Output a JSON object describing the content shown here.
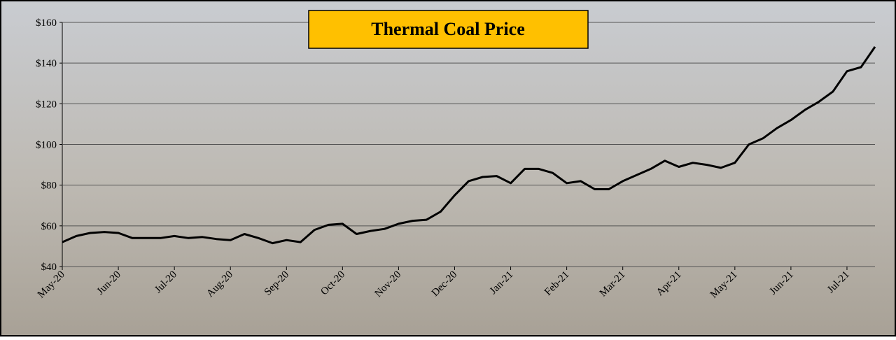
{
  "chart_data": {
    "type": "line",
    "title": "Thermal Coal Price",
    "categories": [
      "May-20",
      null,
      null,
      null,
      "Jun-20",
      null,
      null,
      null,
      "Jul-20",
      null,
      null,
      null,
      "Aug-20",
      null,
      null,
      null,
      "Sep-20",
      null,
      null,
      null,
      "Oct-20",
      null,
      null,
      null,
      "Nov-20",
      null,
      null,
      null,
      "Dec-20",
      null,
      null,
      null,
      "Jan-21",
      null,
      null,
      null,
      "Feb-21",
      null,
      null,
      null,
      "Mar-21",
      null,
      null,
      null,
      "Apr-21",
      null,
      null,
      null,
      "May-21",
      null,
      null,
      null,
      "Jun-21",
      null,
      null,
      null,
      "Jul-21",
      null,
      null
    ],
    "series": [
      {
        "name": "Thermal Coal Price",
        "color": "#000000",
        "values": [
          52,
          55,
          56.5,
          57,
          56.5,
          54,
          54,
          54,
          55,
          54,
          54.5,
          53.5,
          53,
          56,
          54,
          51.5,
          53,
          52,
          58,
          60.5,
          61,
          56,
          57.5,
          58.5,
          61,
          62.5,
          63,
          67,
          75,
          82,
          84,
          84.5,
          81,
          88,
          88,
          86,
          81,
          82,
          78,
          78,
          82,
          85,
          88,
          92,
          89,
          91,
          90,
          88.5,
          91,
          100,
          103,
          108,
          112,
          117,
          121,
          126,
          136,
          138,
          148
        ]
      }
    ],
    "ylim": [
      40,
      160
    ],
    "yticks": [
      {
        "value": 40,
        "label": "$40"
      },
      {
        "value": 60,
        "label": "$60"
      },
      {
        "value": 80,
        "label": "$80"
      },
      {
        "value": 100,
        "label": "$100"
      },
      {
        "value": 120,
        "label": "$120"
      },
      {
        "value": 140,
        "label": "$140"
      },
      {
        "value": 160,
        "label": "$160"
      }
    ],
    "grid": true
  }
}
